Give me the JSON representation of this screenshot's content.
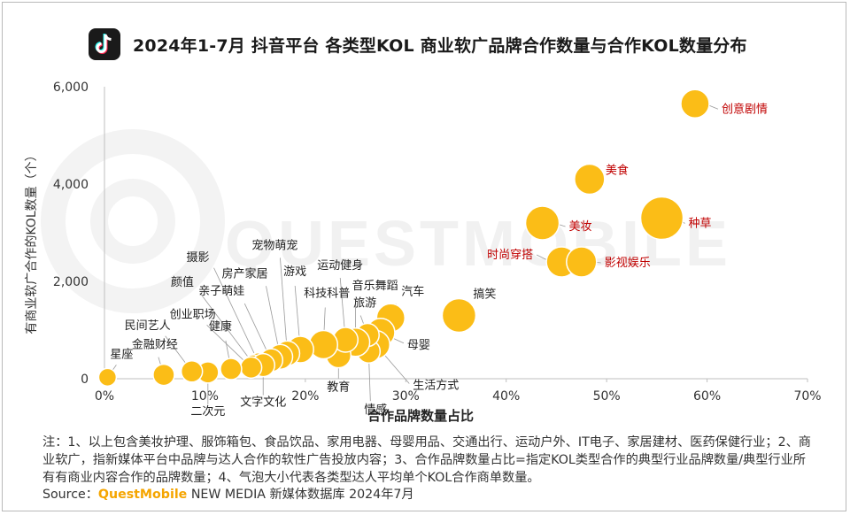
{
  "header": {
    "title": "2024年1-7月 抖音平台 各类型KOL 商业软广品牌合作数量与合作KOL数量分布",
    "logo_icon": "tiktok-logo-icon"
  },
  "watermark": "QUESTMOBILE",
  "footnote": "注：1、以上包含美妆护理、服饰箱包、食品饮品、家用电器、母婴用品、交通出行、运动户外、IT电子、家居建材、医药保健行业；2、商业软广，指新媒体平台中品牌与达人合作的软性广告投放内容；3、合作品牌数量占比=指定KOL类型合作的典型行业品牌数量/典型行业所有有商业内容合作的品牌数量；4、气泡大小代表各类型达人平均单个KOL合作商单数量。",
  "source": {
    "label": "Source：",
    "brand": "QuestMobile",
    "text": " NEW MEDIA 新媒体数据库 2024年7月"
  },
  "colors": {
    "bubble": "#FBBD17",
    "highlight_label": "#C00000",
    "label": "#222222",
    "grid": "#d9d9d9"
  },
  "chart_data": {
    "type": "scatter",
    "title": "2024年1-7月 抖音平台 各类型KOL 商业软广品牌合作数量与合作KOL数量分布",
    "xlabel": "合作品牌数量占比",
    "ylabel": "有商业软广合作的KOL数量（个）",
    "xlim": [
      0,
      70
    ],
    "ylim": [
      0,
      6000
    ],
    "xticks": [
      "0%",
      "10%",
      "20%",
      "30%",
      "40%",
      "50%",
      "60%",
      "70%"
    ],
    "yticks": [
      "0",
      "2,000",
      "4,000",
      "6,000"
    ],
    "points": [
      {
        "label": "创意剧情",
        "x": 58.8,
        "y": 5650,
        "size": 1.6,
        "highlight": true
      },
      {
        "label": "美食",
        "x": 48.3,
        "y": 4100,
        "size": 1.7,
        "highlight": true
      },
      {
        "label": "美妆",
        "x": 43.6,
        "y": 3200,
        "size": 1.9,
        "highlight": true
      },
      {
        "label": "种草",
        "x": 55.5,
        "y": 3300,
        "size": 2.4,
        "highlight": true
      },
      {
        "label": "时尚穿搭",
        "x": 45.5,
        "y": 2400,
        "size": 1.7,
        "highlight": true
      },
      {
        "label": "影视娱乐",
        "x": 47.5,
        "y": 2400,
        "size": 1.7,
        "highlight": true
      },
      {
        "label": "搞笑",
        "x": 35.3,
        "y": 1300,
        "size": 1.9,
        "highlight": false
      },
      {
        "label": "汽车",
        "x": 28.5,
        "y": 1250,
        "size": 1.6,
        "highlight": false
      },
      {
        "label": "母婴",
        "x": 27.5,
        "y": 950,
        "size": 1.6,
        "highlight": false
      },
      {
        "label": "生活方式",
        "x": 27.0,
        "y": 700,
        "size": 1.6,
        "highlight": false
      },
      {
        "label": "情感",
        "x": 26.3,
        "y": 560,
        "size": 1.3,
        "highlight": false
      },
      {
        "label": "旅游",
        "x": 26.2,
        "y": 900,
        "size": 1.3,
        "highlight": false
      },
      {
        "label": "音乐舞蹈",
        "x": 25.0,
        "y": 750,
        "size": 1.6,
        "highlight": false
      },
      {
        "label": "教育",
        "x": 23.3,
        "y": 480,
        "size": 1.4,
        "highlight": false
      },
      {
        "label": "运动健身",
        "x": 24.0,
        "y": 800,
        "size": 1.4,
        "highlight": false
      },
      {
        "label": "科技科普",
        "x": 21.8,
        "y": 700,
        "size": 1.6,
        "highlight": false
      },
      {
        "label": "游戏",
        "x": 19.5,
        "y": 600,
        "size": 1.5,
        "highlight": false
      },
      {
        "label": "宠物萌宠",
        "x": 18.2,
        "y": 520,
        "size": 1.4,
        "highlight": false
      },
      {
        "label": "房产家居",
        "x": 17.5,
        "y": 450,
        "size": 1.4,
        "highlight": false
      },
      {
        "label": "亲子萌娃",
        "x": 16.6,
        "y": 380,
        "size": 1.3,
        "highlight": false
      },
      {
        "label": "摄影",
        "x": 15.3,
        "y": 350,
        "size": 1.0,
        "highlight": false
      },
      {
        "label": "颜值",
        "x": 14.8,
        "y": 310,
        "size": 1.0,
        "highlight": false
      },
      {
        "label": "文字文化",
        "x": 15.8,
        "y": 280,
        "size": 1.3,
        "highlight": false
      },
      {
        "label": "创业职场",
        "x": 14.6,
        "y": 230,
        "size": 1.2,
        "highlight": false
      },
      {
        "label": "健康",
        "x": 12.6,
        "y": 200,
        "size": 1.2,
        "highlight": false
      },
      {
        "label": "二次元",
        "x": 10.3,
        "y": 130,
        "size": 1.2,
        "highlight": false
      },
      {
        "label": "民间艺人",
        "x": 8.7,
        "y": 150,
        "size": 1.2,
        "highlight": false
      },
      {
        "label": "金融财经",
        "x": 5.9,
        "y": 80,
        "size": 1.2,
        "highlight": false
      },
      {
        "label": "星座",
        "x": 0.3,
        "y": 30,
        "size": 1.0,
        "highlight": false
      }
    ]
  }
}
